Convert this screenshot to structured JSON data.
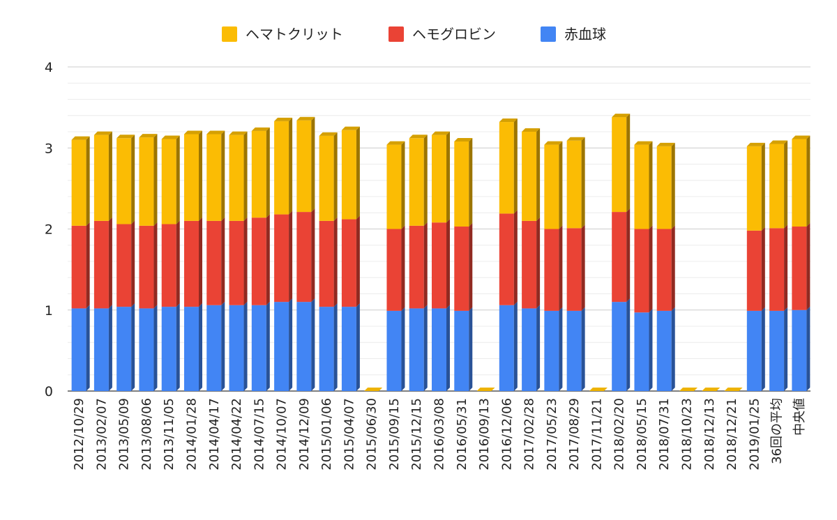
{
  "chart_data": {
    "type": "bar",
    "stacked": true,
    "style": "3d",
    "categories": [
      "2012/10/29",
      "2013/02/07",
      "2013/05/09",
      "2013/08/06",
      "2013/11/05",
      "2014/01/28",
      "2014/04/17",
      "2014/04/22",
      "2014/07/15",
      "2014/10/07",
      "2014/12/09",
      "2015/01/06",
      "2015/04/07",
      "2015/06/30",
      "2015/09/15",
      "2015/12/15",
      "2016/03/08",
      "2016/05/31",
      "2016/09/13",
      "2016/12/06",
      "2017/02/28",
      "2017/05/23",
      "2017/08/29",
      "2017/11/21",
      "2018/02/20",
      "2018/05/15",
      "2018/07/31",
      "2018/10/23",
      "2018/12/13",
      "2018/12/21",
      "2019/01/25",
      "36回の平均",
      "中央値"
    ],
    "series": [
      {
        "name": "赤血球",
        "color": "#4285f4",
        "values": [
          1.02,
          1.02,
          1.04,
          1.02,
          1.04,
          1.04,
          1.06,
          1.06,
          1.06,
          1.1,
          1.1,
          1.04,
          1.04,
          0,
          0.99,
          1.02,
          1.02,
          0.99,
          0,
          1.06,
          1.02,
          0.99,
          0.99,
          0,
          1.1,
          0.97,
          0.99,
          0,
          0,
          0,
          0.99,
          0.99,
          1.0
        ]
      },
      {
        "name": "ヘモグロビン",
        "color": "#ea4335",
        "values": [
          1.02,
          1.08,
          1.02,
          1.02,
          1.02,
          1.06,
          1.04,
          1.04,
          1.08,
          1.08,
          1.11,
          1.06,
          1.08,
          0,
          1.01,
          1.02,
          1.06,
          1.04,
          0,
          1.13,
          1.08,
          1.01,
          1.02,
          0,
          1.11,
          1.03,
          1.01,
          0,
          0,
          0,
          0.99,
          1.02,
          1.03
        ]
      },
      {
        "name": "ヘマトクリット",
        "color": "#fbbc04",
        "values": [
          1.06,
          1.06,
          1.06,
          1.09,
          1.05,
          1.07,
          1.07,
          1.06,
          1.07,
          1.15,
          1.13,
          1.05,
          1.1,
          0,
          1.04,
          1.08,
          1.08,
          1.05,
          0,
          1.13,
          1.1,
          1.04,
          1.08,
          0,
          1.17,
          1.04,
          1.02,
          0,
          0,
          0,
          1.04,
          1.04,
          1.08
        ]
      }
    ],
    "legend_order": [
      "ヘマトクリット",
      "ヘモグロビン",
      "赤血球"
    ],
    "legend_position": "top",
    "ylim": [
      0,
      4
    ],
    "yticks": [
      "0",
      "1",
      "2",
      "3",
      "4"
    ],
    "minor_gridlines": true,
    "xlabel": "",
    "ylabel": "",
    "title": ""
  }
}
